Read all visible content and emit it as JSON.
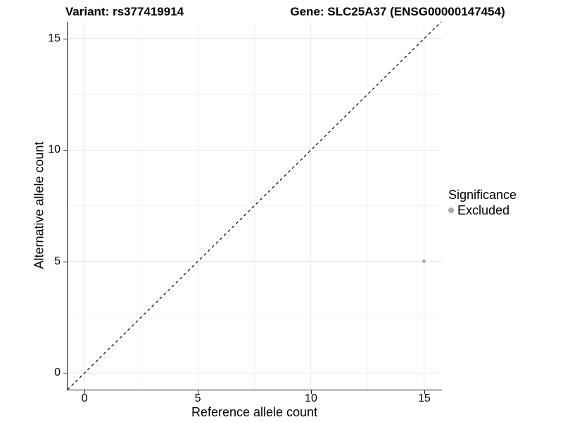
{
  "chart_data": {
    "type": "scatter",
    "title_left": "Variant: rs377419914",
    "title_right": "Gene: SLC25A37 (ENSG00000147454)",
    "xlabel": "Reference allele count",
    "ylabel": "Alternative allele count",
    "xlim": [
      -0.75,
      15.75
    ],
    "ylim": [
      -0.75,
      15.75
    ],
    "x_ticks": [
      0,
      5,
      10,
      15
    ],
    "y_ticks": [
      0,
      5,
      10,
      15
    ],
    "grid": "major and minor gridlines, white panel background",
    "reference_line": {
      "type": "identity",
      "slope": 1,
      "intercept": 0,
      "style": "dashed",
      "color": "#000000"
    },
    "series": [
      {
        "name": "Excluded",
        "color": "#a9a9a9",
        "points": [
          {
            "x": 15,
            "y": 5
          }
        ]
      }
    ],
    "legend": {
      "title": "Significance",
      "position": "right",
      "items": [
        {
          "label": "Excluded",
          "color": "#a9a9a9"
        }
      ]
    },
    "colors": {
      "background": "#ffffff",
      "grid_major": "#e8e8e8",
      "grid_minor": "#f4f4f4",
      "axis": "#1a1a1a",
      "point": "#a9a9a9",
      "text": "#000000"
    }
  }
}
